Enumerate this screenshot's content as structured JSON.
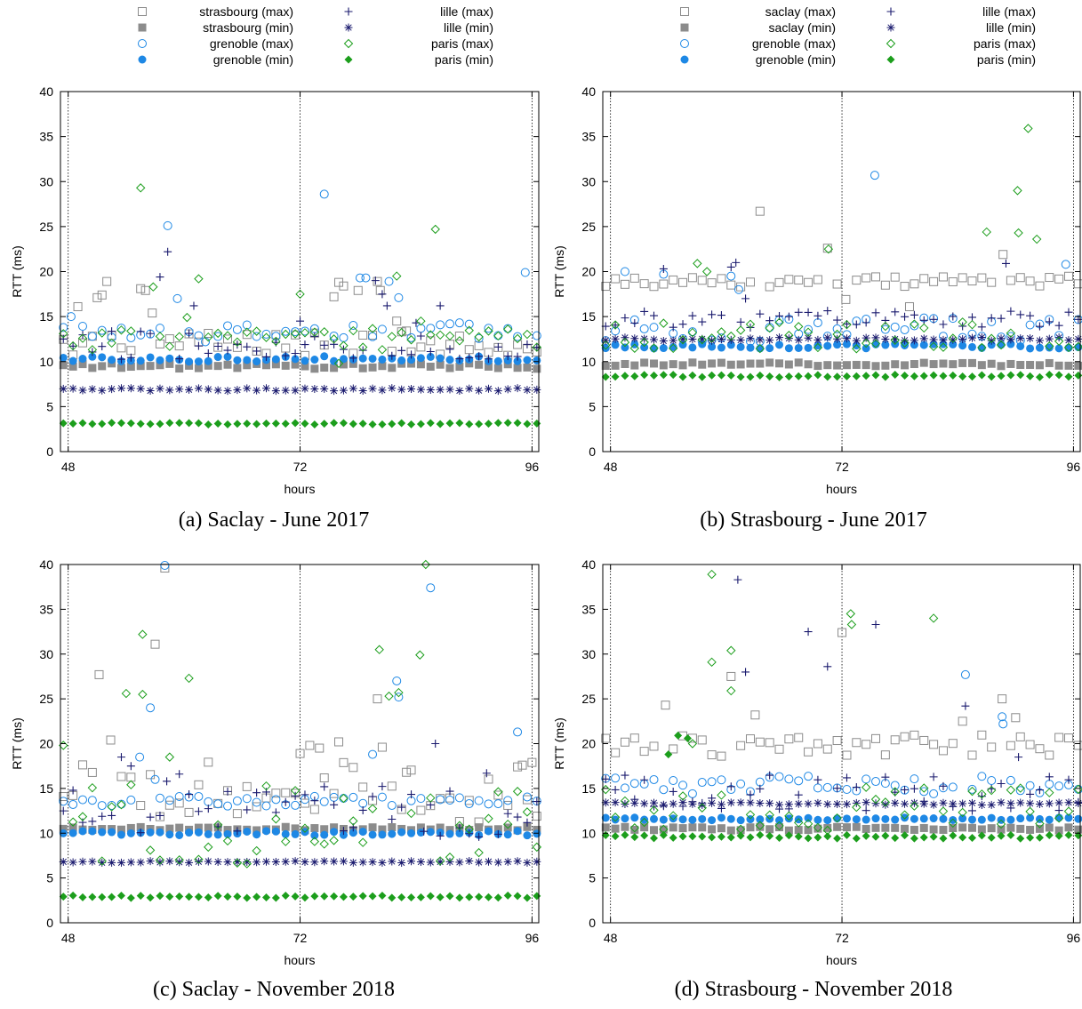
{
  "xlabel": "hours",
  "ylabel": "RTT (ms)",
  "colors": {
    "gray": "#8c8c8c",
    "blue": "#1e88e5",
    "navy": "#1a1a6e",
    "green": "#1c9e1c",
    "vline": "#000000"
  },
  "chart_data": [
    {
      "type": "scatter",
      "caption": "(a) Saclay - June 2017",
      "xlabel": "hours",
      "ylabel": "RTT (ms)",
      "xlim": [
        47.2,
        96.7
      ],
      "ylim": [
        0,
        40
      ],
      "xticks": [
        48,
        72,
        96
      ],
      "yticks": [
        0,
        5,
        10,
        15,
        20,
        25,
        30,
        35,
        40
      ],
      "vlines": [
        48,
        72,
        96
      ],
      "legend": [
        "strasbourg (max)",
        "strasbourg (min)",
        "grenoble (max)",
        "grenoble (min)",
        "lille (max)",
        "lille (min)",
        "paris (max)",
        "paris (min)"
      ],
      "series": [
        {
          "name": "strasbourg (max)",
          "color": "gray",
          "marker": "square-open",
          "base": 12.0,
          "amp": 1.4,
          "spikes": [
            [
              49,
              16.1
            ],
            [
              51,
              17.1
            ],
            [
              51.5,
              17.4
            ],
            [
              52,
              18.9
            ],
            [
              55.5,
              18.1
            ],
            [
              56,
              17.9
            ],
            [
              56.7,
              15.4
            ],
            [
              75.5,
              17.2
            ],
            [
              76,
              18.8
            ],
            [
              76.5,
              18.4
            ],
            [
              78,
              17.9
            ],
            [
              80,
              18.9
            ],
            [
              80.3,
              17.9
            ],
            [
              82,
              14.5
            ],
            [
              83,
              13.4
            ]
          ]
        },
        {
          "name": "strasbourg (min)",
          "color": "gray",
          "marker": "square",
          "base": 9.5,
          "amp": 0.3,
          "spikes": []
        },
        {
          "name": "grenoble (max)",
          "color": "blue",
          "marker": "circle-open",
          "base": 13.4,
          "amp": 1.0,
          "spikes": [
            [
              48.3,
              15.0
            ],
            [
              58.3,
              25.1
            ],
            [
              59.3,
              17.0
            ],
            [
              62.2,
              12.2
            ],
            [
              74.5,
              28.6
            ],
            [
              78.2,
              19.3
            ],
            [
              78.8,
              19.3
            ],
            [
              81.2,
              18.9
            ],
            [
              82.2,
              17.1
            ],
            [
              95.3,
              19.9
            ]
          ]
        },
        {
          "name": "grenoble (min)",
          "color": "blue",
          "marker": "circle",
          "base": 10.3,
          "amp": 0.3,
          "spikes": []
        },
        {
          "name": "lille (max)",
          "color": "navy",
          "marker": "plus",
          "base": 11.8,
          "amp": 1.6,
          "spikes": [
            [
              57.5,
              19.4
            ],
            [
              58.3,
              22.2
            ],
            [
              61,
              16.2
            ],
            [
              72,
              14.5
            ],
            [
              79.8,
              19.0
            ],
            [
              80.5,
              17.5
            ],
            [
              81,
              16.2
            ],
            [
              84,
              14.3
            ],
            [
              86.5,
              16.2
            ]
          ]
        },
        {
          "name": "lille (min)",
          "color": "navy",
          "marker": "asterisk",
          "base": 6.9,
          "amp": 0.15,
          "spikes": []
        },
        {
          "name": "paris (max)",
          "color": "green",
          "marker": "diamond-open",
          "base": 12.5,
          "amp": 1.2,
          "spikes": [
            [
              55.5,
              29.3
            ],
            [
              56.8,
              18.3
            ],
            [
              60.3,
              14.9
            ],
            [
              61.5,
              19.2
            ],
            [
              72,
              17.5
            ],
            [
              76,
              9.8
            ],
            [
              84.5,
              14.5
            ],
            [
              86,
              24.7
            ],
            [
              82,
              19.5
            ]
          ]
        },
        {
          "name": "paris (min)",
          "color": "green",
          "marker": "diamond",
          "base": 3.1,
          "amp": 0.1,
          "spikes": []
        }
      ]
    },
    {
      "type": "scatter",
      "caption": "(b) Strasbourg - June 2017",
      "xlabel": "hours",
      "ylabel": "RTT (ms)",
      "xlim": [
        47.2,
        96.7
      ],
      "ylim": [
        0,
        40
      ],
      "xticks": [
        48,
        72,
        96
      ],
      "yticks": [
        0,
        5,
        10,
        15,
        20,
        25,
        30,
        35,
        40
      ],
      "vlines": [
        48,
        72,
        96
      ],
      "legend": [
        "saclay (max)",
        "saclay (min)",
        "grenoble (max)",
        "grenoble (min)",
        "lille (max)",
        "lille (min)",
        "paris (max)",
        "paris (min)"
      ],
      "series": [
        {
          "name": "saclay (max)",
          "color": "gray",
          "marker": "square-open",
          "base": 18.9,
          "amp": 0.6,
          "spikes": [
            [
              63.5,
              26.7
            ],
            [
              70.5,
              22.6
            ],
            [
              88.7,
              21.9
            ],
            [
              72.4,
              16.9
            ],
            [
              79,
              16.1
            ]
          ]
        },
        {
          "name": "saclay (min)",
          "color": "gray",
          "marker": "square",
          "base": 9.7,
          "amp": 0.2,
          "spikes": []
        },
        {
          "name": "grenoble (max)",
          "color": "blue",
          "marker": "circle-open",
          "base": 13.5,
          "amp": 1.4,
          "spikes": [
            [
              75.4,
              30.7
            ],
            [
              95.2,
              20.8
            ],
            [
              49.5,
              20.0
            ],
            [
              53.5,
              19.7
            ],
            [
              60.5,
              19.5
            ],
            [
              61.3,
              18.0
            ]
          ]
        },
        {
          "name": "grenoble (min)",
          "color": "blue",
          "marker": "circle",
          "base": 11.7,
          "amp": 0.25,
          "spikes": []
        },
        {
          "name": "lille (max)",
          "color": "navy",
          "marker": "plus",
          "base": 14.7,
          "amp": 1.0,
          "spikes": [
            [
              61,
              21.0
            ],
            [
              89,
              20.9
            ],
            [
              53.5,
              20.3
            ],
            [
              60.5,
              20.5
            ],
            [
              62,
              17.0
            ]
          ]
        },
        {
          "name": "lille (min)",
          "color": "navy",
          "marker": "asterisk",
          "base": 12.5,
          "amp": 0.2,
          "spikes": []
        },
        {
          "name": "paris (max)",
          "color": "green",
          "marker": "diamond-open",
          "base": 12.9,
          "amp": 1.5,
          "spikes": [
            [
              91.3,
              35.9
            ],
            [
              90.2,
              29.0
            ],
            [
              90.3,
              24.3
            ],
            [
              92.2,
              23.6
            ],
            [
              87,
              24.4
            ],
            [
              70.6,
              22.5
            ],
            [
              57,
              20.9
            ],
            [
              58,
              20.0
            ]
          ]
        },
        {
          "name": "paris (min)",
          "color": "green",
          "marker": "diamond",
          "base": 8.4,
          "amp": 0.15,
          "spikes": []
        }
      ]
    },
    {
      "type": "scatter",
      "caption": "(c) Saclay - November 2018",
      "xlabel": "hours",
      "ylabel": "RTT (ms)",
      "xlim": [
        47.2,
        96.7
      ],
      "ylim": [
        0,
        40
      ],
      "xticks": [
        48,
        72,
        96
      ],
      "yticks": [
        0,
        5,
        10,
        15,
        20,
        25,
        30,
        35,
        40
      ],
      "vlines": [
        48,
        72,
        96
      ],
      "legend": [
        "strasbourg (max)",
        "strasbourg (min)",
        "grenoble (max)",
        "grenoble (min)",
        "lille (max)",
        "lille (min)",
        "paris (max)",
        "paris (min)"
      ],
      "series": [
        {
          "name": "strasbourg (max)",
          "color": "gray",
          "marker": "square-open",
          "base": 14.5,
          "amp": 3.5,
          "spikes": [
            [
              58,
              39.6
            ],
            [
              57,
              31.1
            ],
            [
              51.2,
              27.7
            ],
            [
              52.4,
              20.4
            ],
            [
              72,
              18.9
            ],
            [
              73,
              19.8
            ],
            [
              74,
              19.5
            ],
            [
              76,
              20.2
            ],
            [
              80,
              25.0
            ],
            [
              80.5,
              19.6
            ],
            [
              83,
              16.8
            ],
            [
              95,
              17.6
            ],
            [
              96,
              17.9
            ]
          ]
        },
        {
          "name": "strasbourg (min)",
          "color": "gray",
          "marker": "square",
          "base": 10.5,
          "amp": 0.2,
          "spikes": []
        },
        {
          "name": "grenoble (max)",
          "color": "blue",
          "marker": "circle-open",
          "base": 13.6,
          "amp": 0.6,
          "spikes": [
            [
              58,
              39.9
            ],
            [
              85.5,
              37.4
            ],
            [
              82,
              27.0
            ],
            [
              82.2,
              25.2
            ],
            [
              56.5,
              24.0
            ],
            [
              55.4,
              18.5
            ],
            [
              57,
              16.0
            ],
            [
              94.5,
              21.3
            ],
            [
              79.5,
              18.8
            ]
          ]
        },
        {
          "name": "grenoble (min)",
          "color": "blue",
          "marker": "circle",
          "base": 10.0,
          "amp": 0.25,
          "spikes": []
        },
        {
          "name": "lille (max)",
          "color": "navy",
          "marker": "plus",
          "base": 12.5,
          "amp": 3.0,
          "spikes": [
            [
              53.5,
              18.5
            ],
            [
              54.5,
              17.5
            ],
            [
              58.2,
              15.8
            ],
            [
              59.5,
              16.6
            ],
            [
              86,
              20.0
            ],
            [
              84.8,
              10.2
            ],
            [
              91.3,
              16.7
            ]
          ]
        },
        {
          "name": "lille (min)",
          "color": "navy",
          "marker": "asterisk",
          "base": 6.8,
          "amp": 0.1,
          "spikes": []
        },
        {
          "name": "paris (max)",
          "color": "green",
          "marker": "diamond-open",
          "base": 11.0,
          "amp": 4.5,
          "spikes": [
            [
              85,
              40.0
            ],
            [
              80.2,
              30.5
            ],
            [
              84.4,
              29.9
            ],
            [
              55.7,
              32.2
            ],
            [
              54,
              25.6
            ],
            [
              55.7,
              25.5
            ],
            [
              60.5,
              27.3
            ],
            [
              81.2,
              25.3
            ],
            [
              82.2,
              25.7
            ],
            [
              47.5,
              19.8
            ],
            [
              58.5,
              18.5
            ]
          ]
        },
        {
          "name": "paris (min)",
          "color": "green",
          "marker": "diamond",
          "base": 2.9,
          "amp": 0.15,
          "spikes": []
        }
      ]
    },
    {
      "type": "scatter",
      "caption": "(d) Strasbourg - November 2018",
      "xlabel": "hours",
      "ylabel": "RTT (ms)",
      "xlim": [
        47.2,
        96.7
      ],
      "ylim": [
        0,
        40
      ],
      "xticks": [
        48,
        72,
        96
      ],
      "yticks": [
        0,
        5,
        10,
        15,
        20,
        25,
        30,
        35,
        40
      ],
      "vlines": [
        48,
        72,
        96
      ],
      "legend": [
        "saclay (max)",
        "saclay (min)",
        "grenoble (max)",
        "grenoble (min)",
        "lille (max)",
        "lille (min)",
        "paris (max)",
        "paris (min)"
      ],
      "series": [
        {
          "name": "saclay (max)",
          "color": "gray",
          "marker": "square-open",
          "base": 19.8,
          "amp": 1.2,
          "spikes": [
            [
              72,
              32.4
            ],
            [
              60.5,
              27.5
            ],
            [
              88.6,
              25.0
            ],
            [
              53.7,
              24.3
            ],
            [
              63,
              23.2
            ],
            [
              90,
              22.9
            ],
            [
              84.5,
              22.5
            ]
          ]
        },
        {
          "name": "saclay (min)",
          "color": "gray",
          "marker": "square",
          "base": 10.5,
          "amp": 0.2,
          "spikes": []
        },
        {
          "name": "grenoble (max)",
          "color": "blue",
          "marker": "circle-open",
          "base": 15.4,
          "amp": 1.0,
          "spikes": [
            [
              84.8,
              27.7
            ],
            [
              88.6,
              23.0
            ],
            [
              88.7,
              22.2
            ],
            [
              96.5,
              14.9
            ]
          ]
        },
        {
          "name": "grenoble (min)",
          "color": "blue",
          "marker": "circle",
          "base": 11.6,
          "amp": 0.15,
          "spikes": []
        },
        {
          "name": "lille (max)",
          "color": "navy",
          "marker": "plus",
          "base": 14.5,
          "amp": 2.0,
          "spikes": [
            [
              61.2,
              38.3
            ],
            [
              75.5,
              33.3
            ],
            [
              68.5,
              32.5
            ],
            [
              70.5,
              28.6
            ],
            [
              62,
              28.0
            ],
            [
              84.8,
              24.2
            ],
            [
              90.3,
              18.5
            ]
          ]
        },
        {
          "name": "lille (min)",
          "color": "navy",
          "marker": "asterisk",
          "base": 13.3,
          "amp": 0.15,
          "spikes": []
        },
        {
          "name": "paris (max)",
          "color": "green",
          "marker": "diamond-open",
          "base": 12.8,
          "amp": 2.5,
          "spikes": [
            [
              58.5,
              38.9
            ],
            [
              72.9,
              34.5
            ],
            [
              73,
              33.3
            ],
            [
              81.5,
              34.0
            ],
            [
              58.5,
              29.1
            ],
            [
              60.5,
              30.4
            ],
            [
              60.5,
              25.9
            ],
            [
              56.5,
              20.0
            ]
          ]
        },
        {
          "name": "paris (min)",
          "color": "green",
          "marker": "diamond",
          "base": 9.6,
          "amp": 0.2,
          "spikes": [
            [
              55,
              20.9
            ],
            [
              56,
              20.6
            ],
            [
              54,
              18.8
            ]
          ]
        }
      ]
    }
  ]
}
